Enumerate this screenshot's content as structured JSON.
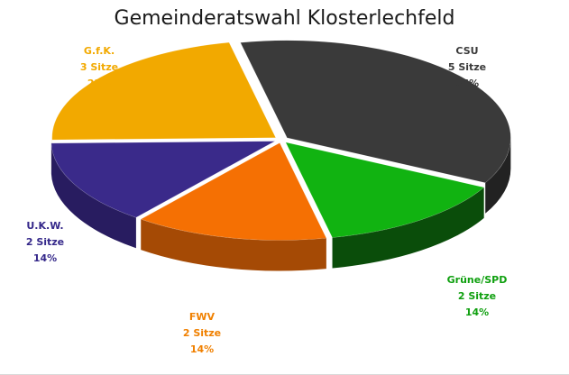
{
  "chart_data": {
    "type": "pie",
    "title": "Gemeinderatswahl Klosterlechfeld",
    "slices": [
      {
        "name": "CSU",
        "seats_label": "5 Sitze",
        "seats": 5,
        "percent_label": "36%",
        "value": 36,
        "color": "#3a3a3a",
        "side_color": "#222222"
      },
      {
        "name": "Grüne/SPD",
        "seats_label": "2 Sitze",
        "seats": 2,
        "percent_label": "14%",
        "value": 14,
        "color": "#11b311",
        "side_color": "#0a4d0a"
      },
      {
        "name": "FWV",
        "seats_label": "2 Sitze",
        "seats": 2,
        "percent_label": "14%",
        "value": 14,
        "color": "#f57003",
        "side_color": "#a54a05"
      },
      {
        "name": "U.K.W.",
        "seats_label": "2 Sitze",
        "seats": 2,
        "percent_label": "14%",
        "value": 14,
        "color": "#3a2a8a",
        "side_color": "#281c60"
      },
      {
        "name": "G.f.K.",
        "seats_label": "3 Sitze",
        "seats": 3,
        "percent_label": "22%",
        "value": 22,
        "color": "#f2a900",
        "side_color": "#b07a00"
      }
    ],
    "label_colors": {
      "CSU": "#3a3a3a",
      "Grüne/SPD": "#10a010",
      "FWV": "#f08000",
      "U.K.W.": "#35288a",
      "G.f.K.": "#f2a900"
    },
    "legend": "none",
    "style": "3d-exploded"
  }
}
